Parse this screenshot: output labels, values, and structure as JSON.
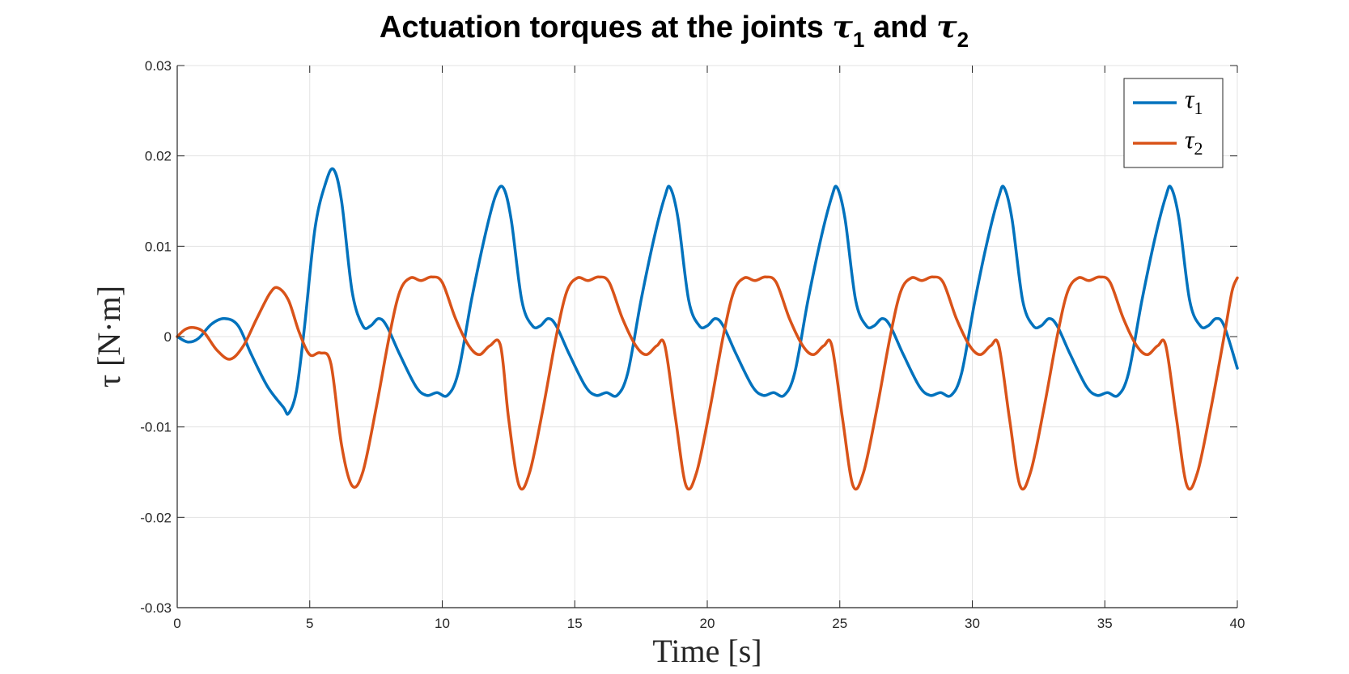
{
  "chart_data": {
    "type": "line",
    "title": {
      "prefix": "Actuation torques at the joints ",
      "sym1": "τ",
      "sub1": "1",
      "middle": " and  ",
      "sym2": "τ",
      "sub2": "2"
    },
    "xlabel": "Time [s]",
    "ylabel": "τ [N·m]",
    "xlim": [
      0,
      40
    ],
    "ylim": [
      -0.03,
      0.03
    ],
    "xticks": [
      0,
      5,
      10,
      15,
      20,
      25,
      30,
      35,
      40
    ],
    "xtick_labels": [
      "0",
      "5",
      "10",
      "15",
      "20",
      "25",
      "30",
      "35",
      "40"
    ],
    "yticks": [
      -0.03,
      -0.02,
      -0.01,
      0,
      0.01,
      0.02,
      0.03
    ],
    "ytick_labels": [
      "-0.03",
      "-0.02",
      "-0.01",
      "0",
      "0.01",
      "0.02",
      "0.03"
    ],
    "grid": true,
    "legend_position": "top-right",
    "series": [
      {
        "name_symbol": "τ",
        "name_sub": "1",
        "color": "#0072BD",
        "points": [
          [
            0,
            0
          ],
          [
            0.4,
            -0.0006
          ],
          [
            0.8,
            -0.0002
          ],
          [
            1.3,
            0.0014
          ],
          [
            1.8,
            0.002
          ],
          [
            2.3,
            0.0012
          ],
          [
            2.8,
            -0.002
          ],
          [
            3.4,
            -0.0055
          ],
          [
            4.0,
            -0.0078
          ],
          [
            4.2,
            -0.0085
          ],
          [
            4.5,
            -0.006
          ],
          [
            4.8,
            0.001
          ],
          [
            5.2,
            0.012
          ],
          [
            5.6,
            0.017
          ],
          [
            5.9,
            0.0185
          ],
          [
            6.2,
            0.015
          ],
          [
            6.6,
            0.005
          ],
          [
            7.0,
            0.0012
          ],
          [
            7.3,
            0.0012
          ],
          [
            7.6,
            0.002
          ],
          [
            7.9,
            0.0012
          ],
          [
            8.4,
            -0.002
          ],
          [
            9.0,
            -0.0055
          ],
          [
            9.4,
            -0.0065
          ],
          [
            9.8,
            -0.0062
          ],
          [
            10.2,
            -0.0065
          ],
          [
            10.6,
            -0.004
          ],
          [
            11.1,
            0.004
          ],
          [
            11.6,
            0.011
          ],
          [
            12.0,
            0.0155
          ],
          [
            12.3,
            0.0165
          ],
          [
            12.6,
            0.013
          ],
          [
            13.0,
            0.004
          ],
          [
            13.4,
            0.0012
          ],
          [
            13.7,
            0.0012
          ],
          [
            14.0,
            0.002
          ],
          [
            14.3,
            0.0012
          ],
          [
            14.8,
            -0.002
          ],
          [
            15.4,
            -0.0055
          ],
          [
            15.8,
            -0.0065
          ],
          [
            16.2,
            -0.0062
          ],
          [
            16.6,
            -0.0065
          ],
          [
            17.0,
            -0.004
          ],
          [
            17.5,
            0.004
          ],
          [
            18.0,
            0.011
          ],
          [
            18.4,
            0.0155
          ],
          [
            18.6,
            0.0165
          ],
          [
            18.9,
            0.013
          ],
          [
            19.3,
            0.004
          ],
          [
            19.7,
            0.0012
          ],
          [
            20.0,
            0.0012
          ],
          [
            20.3,
            0.002
          ],
          [
            20.6,
            0.0012
          ],
          [
            21.1,
            -0.002
          ],
          [
            21.7,
            -0.0055
          ],
          [
            22.1,
            -0.0065
          ],
          [
            22.5,
            -0.0062
          ],
          [
            22.9,
            -0.0065
          ],
          [
            23.3,
            -0.004
          ],
          [
            23.8,
            0.004
          ],
          [
            24.3,
            0.011
          ],
          [
            24.7,
            0.0155
          ],
          [
            24.9,
            0.0165
          ],
          [
            25.2,
            0.013
          ],
          [
            25.6,
            0.004
          ],
          [
            26.0,
            0.0012
          ],
          [
            26.3,
            0.0012
          ],
          [
            26.6,
            0.002
          ],
          [
            26.9,
            0.0012
          ],
          [
            27.4,
            -0.002
          ],
          [
            28.0,
            -0.0055
          ],
          [
            28.4,
            -0.0065
          ],
          [
            28.8,
            -0.0062
          ],
          [
            29.2,
            -0.0065
          ],
          [
            29.6,
            -0.004
          ],
          [
            30.1,
            0.004
          ],
          [
            30.6,
            0.011
          ],
          [
            31.0,
            0.0155
          ],
          [
            31.2,
            0.0165
          ],
          [
            31.5,
            0.013
          ],
          [
            31.9,
            0.004
          ],
          [
            32.3,
            0.0012
          ],
          [
            32.6,
            0.0012
          ],
          [
            32.9,
            0.002
          ],
          [
            33.2,
            0.0012
          ],
          [
            33.7,
            -0.002
          ],
          [
            34.3,
            -0.0055
          ],
          [
            34.7,
            -0.0065
          ],
          [
            35.1,
            -0.0062
          ],
          [
            35.5,
            -0.0065
          ],
          [
            35.9,
            -0.004
          ],
          [
            36.4,
            0.004
          ],
          [
            36.9,
            0.011
          ],
          [
            37.3,
            0.0155
          ],
          [
            37.5,
            0.0165
          ],
          [
            37.8,
            0.013
          ],
          [
            38.2,
            0.004
          ],
          [
            38.6,
            0.0012
          ],
          [
            38.9,
            0.0012
          ],
          [
            39.2,
            0.002
          ],
          [
            39.5,
            0.0012
          ],
          [
            40.0,
            -0.0035
          ]
        ]
      },
      {
        "name_symbol": "τ",
        "name_sub": "2",
        "color": "#D95319",
        "points": [
          [
            0,
            0
          ],
          [
            0.3,
            0.0008
          ],
          [
            0.6,
            0.001
          ],
          [
            1.0,
            0.0005
          ],
          [
            1.5,
            -0.0015
          ],
          [
            2.0,
            -0.0025
          ],
          [
            2.5,
            -0.001
          ],
          [
            3.0,
            0.002
          ],
          [
            3.5,
            0.0048
          ],
          [
            3.8,
            0.0054
          ],
          [
            4.2,
            0.004
          ],
          [
            4.6,
            0.0005
          ],
          [
            5.0,
            -0.002
          ],
          [
            5.4,
            -0.0018
          ],
          [
            5.8,
            -0.003
          ],
          [
            6.2,
            -0.012
          ],
          [
            6.6,
            -0.0165
          ],
          [
            7.0,
            -0.015
          ],
          [
            7.5,
            -0.008
          ],
          [
            8.0,
            0.0
          ],
          [
            8.4,
            0.005
          ],
          [
            8.8,
            0.0065
          ],
          [
            9.2,
            0.0062
          ],
          [
            9.6,
            0.0066
          ],
          [
            10.0,
            0.006
          ],
          [
            10.5,
            0.002
          ],
          [
            11.0,
            -0.001
          ],
          [
            11.4,
            -0.002
          ],
          [
            11.8,
            -0.001
          ],
          [
            12.2,
            -0.001
          ],
          [
            12.5,
            -0.009
          ],
          [
            12.9,
            -0.0165
          ],
          [
            13.3,
            -0.015
          ],
          [
            13.8,
            -0.008
          ],
          [
            14.3,
            0.0
          ],
          [
            14.7,
            0.005
          ],
          [
            15.1,
            0.0065
          ],
          [
            15.5,
            0.0062
          ],
          [
            15.9,
            0.0066
          ],
          [
            16.3,
            0.006
          ],
          [
            16.8,
            0.002
          ],
          [
            17.3,
            -0.001
          ],
          [
            17.7,
            -0.002
          ],
          [
            18.1,
            -0.001
          ],
          [
            18.4,
            -0.001
          ],
          [
            18.8,
            -0.009
          ],
          [
            19.2,
            -0.0165
          ],
          [
            19.6,
            -0.015
          ],
          [
            20.1,
            -0.008
          ],
          [
            20.6,
            0.0
          ],
          [
            21.0,
            0.005
          ],
          [
            21.4,
            0.0065
          ],
          [
            21.8,
            0.0062
          ],
          [
            22.2,
            0.0066
          ],
          [
            22.6,
            0.006
          ],
          [
            23.1,
            0.002
          ],
          [
            23.6,
            -0.001
          ],
          [
            24.0,
            -0.002
          ],
          [
            24.4,
            -0.001
          ],
          [
            24.7,
            -0.001
          ],
          [
            25.1,
            -0.009
          ],
          [
            25.5,
            -0.0165
          ],
          [
            25.9,
            -0.015
          ],
          [
            26.4,
            -0.008
          ],
          [
            26.9,
            0.0
          ],
          [
            27.3,
            0.005
          ],
          [
            27.7,
            0.0065
          ],
          [
            28.1,
            0.0062
          ],
          [
            28.5,
            0.0066
          ],
          [
            28.9,
            0.006
          ],
          [
            29.4,
            0.002
          ],
          [
            29.9,
            -0.001
          ],
          [
            30.3,
            -0.002
          ],
          [
            30.7,
            -0.001
          ],
          [
            31.0,
            -0.001
          ],
          [
            31.4,
            -0.009
          ],
          [
            31.8,
            -0.0165
          ],
          [
            32.2,
            -0.015
          ],
          [
            32.7,
            -0.008
          ],
          [
            33.2,
            0.0
          ],
          [
            33.6,
            0.005
          ],
          [
            34.0,
            0.0065
          ],
          [
            34.4,
            0.0062
          ],
          [
            34.8,
            0.0066
          ],
          [
            35.2,
            0.006
          ],
          [
            35.7,
            0.002
          ],
          [
            36.2,
            -0.001
          ],
          [
            36.6,
            -0.002
          ],
          [
            37.0,
            -0.001
          ],
          [
            37.3,
            -0.001
          ],
          [
            37.7,
            -0.009
          ],
          [
            38.1,
            -0.0165
          ],
          [
            38.5,
            -0.015
          ],
          [
            39.0,
            -0.008
          ],
          [
            39.5,
            0.0
          ],
          [
            39.8,
            0.005
          ],
          [
            40.0,
            0.0065
          ]
        ]
      }
    ]
  }
}
